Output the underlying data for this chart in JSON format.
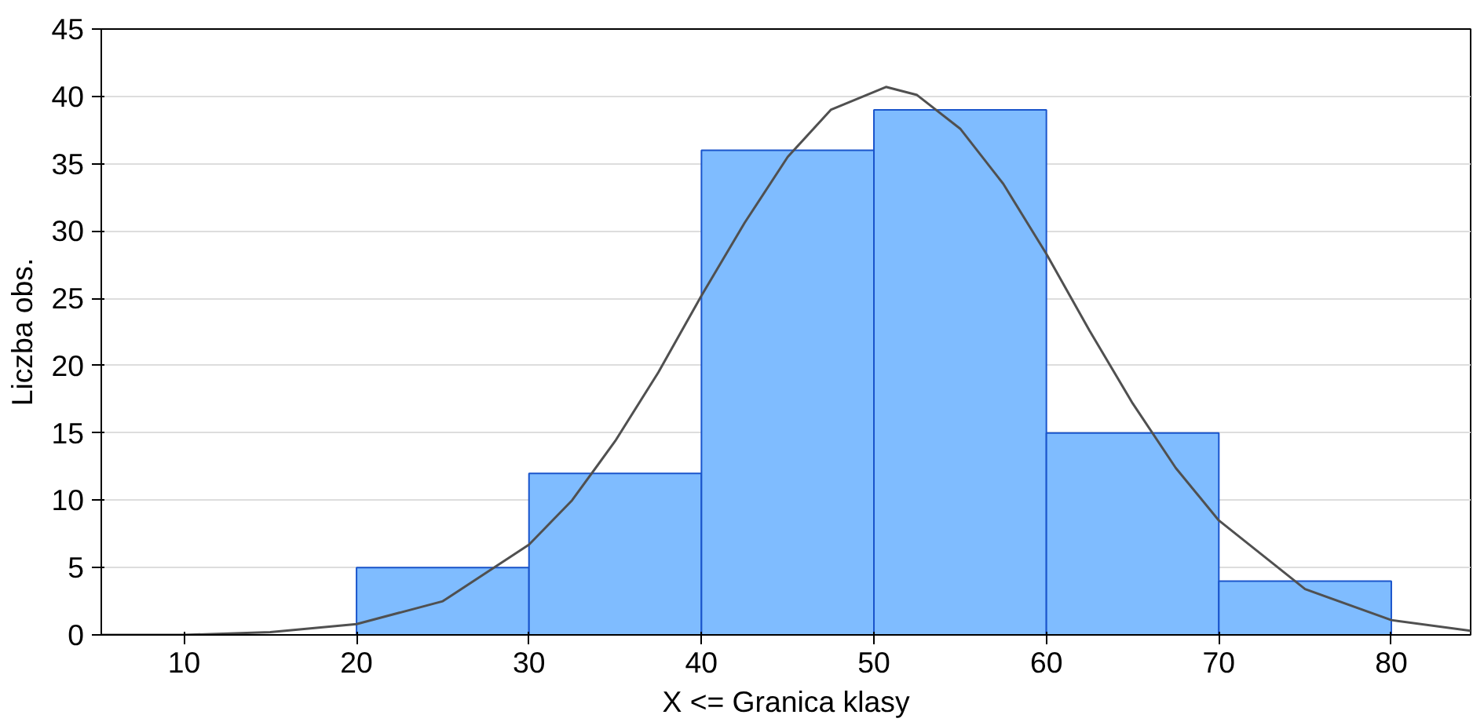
{
  "chart_data": {
    "type": "histogram",
    "xlabel": "X <= Granica klasy",
    "ylabel": "Liczba obs.",
    "bins": [
      20,
      30,
      40,
      50,
      60,
      70,
      80
    ],
    "values": [
      5,
      12,
      36,
      39,
      15,
      4
    ],
    "color": "#7fbcff",
    "series": [
      {
        "type": "line",
        "color": "#505050",
        "x": [
          5.2,
          10,
          15,
          20,
          25,
          30,
          32.5,
          35,
          37.5,
          40,
          42.5,
          45,
          47.5,
          50.7,
          52.5,
          55,
          57.5,
          60,
          62.5,
          65,
          67.5,
          70,
          75,
          80,
          84.6
        ],
        "values": [
          0.0,
          0.0,
          0.2,
          0.8,
          2.5,
          6.7,
          10.0,
          14.4,
          19.5,
          25.2,
          30.6,
          35.5,
          39.0,
          40.7,
          40.1,
          37.6,
          33.5,
          28.3,
          22.6,
          17.2,
          12.4,
          8.5,
          3.4,
          1.1,
          0.3
        ]
      }
    ],
    "xlim": [
      5.2,
      84.6
    ],
    "xticks": [
      10,
      20,
      30,
      40,
      50,
      60,
      70,
      80
    ],
    "ylim": [
      0,
      45
    ],
    "yticks": [
      0,
      5,
      10,
      15,
      20,
      25,
      30,
      35,
      40,
      45
    ],
    "grid": "y"
  }
}
